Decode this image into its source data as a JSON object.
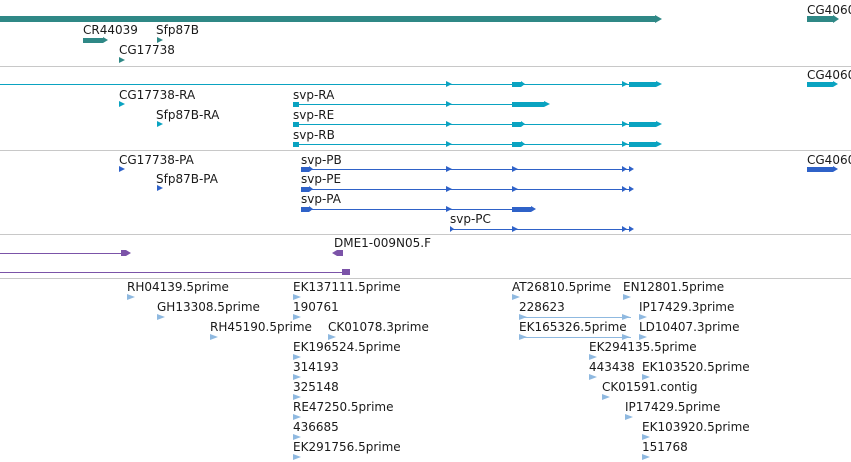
{
  "colors": {
    "track1": "#2f8886",
    "track2": "#0aa3c1",
    "track3": "#2f62c8",
    "track4": "#7b53a8",
    "track5": "#8fb9e0",
    "separator": "#c8c8c8"
  },
  "track1": {
    "labels": [
      "CR44039",
      "Sfp87B",
      "CG17738",
      "CG4060"
    ]
  },
  "track2": {
    "labels": [
      "CG17738-RA",
      "Sfp87B-RA",
      "svp-RA",
      "svp-RE",
      "svp-RB",
      "CG4060"
    ]
  },
  "track3": {
    "labels": [
      "CG17738-PA",
      "Sfp87B-PA",
      "svp-PB",
      "svp-PE",
      "svp-PA",
      "svp-PC",
      "CG4060"
    ]
  },
  "track4": {
    "labels": [
      "DME1-009N05.F"
    ]
  },
  "track5": {
    "labels": [
      "RH04139.5prime",
      "GH13308.5prime",
      "RH45190.5prime",
      "EK137111.5prime",
      "190761",
      "CK01078.3prime",
      "EK196524.5prime",
      "314193",
      "325148",
      "RE47250.5prime",
      "436685",
      "EK291756.5prime",
      "AT26810.5prime",
      "228623",
      "EK165326.5prime",
      "EN12801.5prime",
      "IP17429.3prime",
      "LD10407.3prime",
      "EK294135.5prime",
      "443438",
      "EK103520.5prime",
      "CK01591.contig",
      "IP17429.5prime",
      "EK103920.5prime",
      "151768"
    ]
  }
}
